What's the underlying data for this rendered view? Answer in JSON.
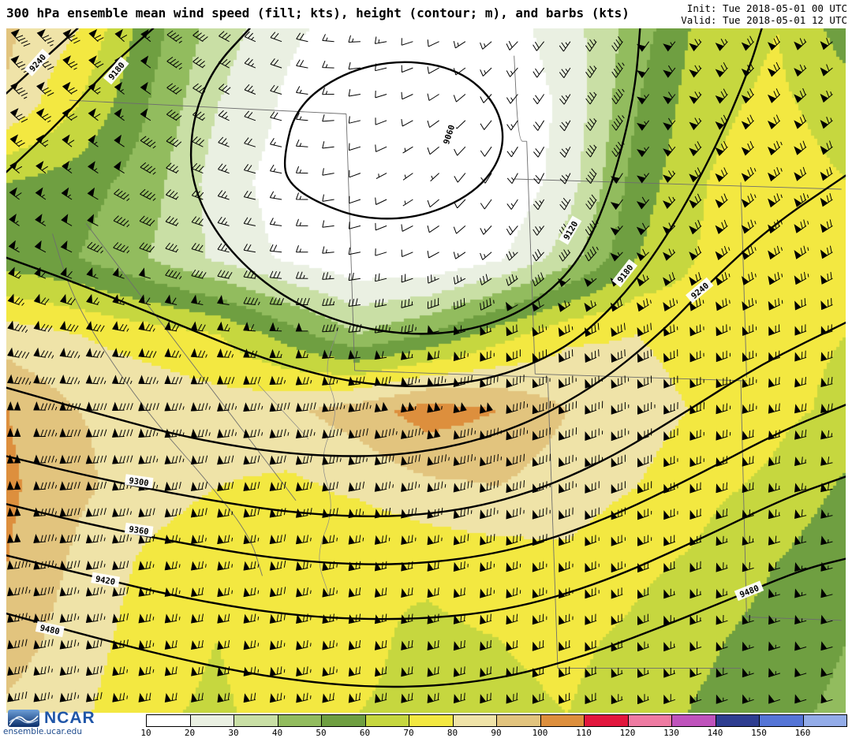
{
  "header": {
    "title": "300 hPa ensemble mean wind speed (fill; kts), height (contour; m), and barbs (kts)",
    "init": "Init: Tue 2018-05-01 00 UTC",
    "valid": "Valid: Tue 2018-05-01 12 UTC"
  },
  "footer": {
    "logo_text": "NCAR",
    "site": "ensemble.ucar.edu"
  },
  "chart_data": {
    "type": "heatmap",
    "title": "300 hPa ensemble mean wind speed (fill; kts), height (contour; m), and barbs (kts)",
    "level": "300 hPa",
    "fill_units": "kts",
    "contour_units": "m",
    "barb_units": "kts",
    "contour_interval_m": 60,
    "contour_levels": [
      9060,
      9120,
      9180,
      9240,
      9300,
      9360,
      9420,
      9480
    ],
    "colorbar": {
      "ticks": [
        10,
        20,
        30,
        40,
        50,
        60,
        70,
        80,
        90,
        100,
        110,
        120,
        130,
        140,
        150,
        160
      ],
      "colors": [
        "#ffffff",
        "#eaf0e2",
        "#c9dfa5",
        "#92bc5e",
        "#6f9f41",
        "#c6d73f",
        "#f3e841",
        "#efe3a8",
        "#e2c47e",
        "#dd8f3d",
        "#e2173d",
        "#ee7ba2",
        "#bf53bc",
        "#2e3d90",
        "#5575d6",
        "#93ace8"
      ]
    },
    "grid": {
      "nx": 13,
      "ny": 10,
      "speed": [
        [
          92,
          80,
          55,
          35,
          22,
          15,
          12,
          15,
          25,
          45,
          65,
          70,
          55
        ],
        [
          88,
          70,
          50,
          30,
          18,
          10,
          8,
          12,
          22,
          50,
          68,
          72,
          65
        ],
        [
          60,
          55,
          45,
          25,
          15,
          8,
          6,
          10,
          25,
          55,
          70,
          75,
          70
        ],
        [
          55,
          50,
          40,
          28,
          18,
          12,
          10,
          18,
          35,
          60,
          72,
          75,
          72
        ],
        [
          85,
          80,
          75,
          70,
          55,
          40,
          50,
          65,
          78,
          80,
          75,
          72,
          70
        ],
        [
          100,
          90,
          88,
          85,
          88,
          95,
          105,
          100,
          90,
          85,
          78,
          72,
          68
        ],
        [
          102,
          92,
          85,
          80,
          78,
          82,
          88,
          90,
          85,
          80,
          72,
          68,
          58
        ],
        [
          100,
          88,
          78,
          72,
          80,
          70,
          72,
          75,
          78,
          72,
          68,
          60,
          52
        ],
        [
          95,
          85,
          75,
          70,
          78,
          72,
          68,
          70,
          72,
          68,
          62,
          55,
          50
        ],
        [
          88,
          82,
          72,
          68,
          75,
          70,
          68,
          68,
          70,
          65,
          58,
          52,
          48
        ]
      ],
      "dir": [
        [
          320,
          315,
          310,
          300,
          290,
          270,
          250,
          230,
          215,
          215,
          220,
          225,
          230
        ],
        [
          315,
          310,
          305,
          300,
          285,
          260,
          240,
          220,
          210,
          215,
          220,
          225,
          230
        ],
        [
          310,
          305,
          300,
          290,
          280,
          250,
          230,
          210,
          205,
          215,
          225,
          230,
          235
        ],
        [
          300,
          295,
          290,
          285,
          275,
          260,
          245,
          230,
          220,
          225,
          230,
          235,
          240
        ],
        [
          285,
          282,
          280,
          278,
          272,
          265,
          258,
          250,
          245,
          245,
          248,
          250,
          252
        ],
        [
          272,
          270,
          268,
          266,
          264,
          262,
          260,
          255,
          252,
          250,
          252,
          255,
          258
        ],
        [
          268,
          266,
          264,
          262,
          262,
          260,
          258,
          255,
          252,
          250,
          252,
          255,
          258
        ],
        [
          265,
          264,
          262,
          260,
          260,
          258,
          256,
          254,
          252,
          250,
          252,
          254,
          256
        ],
        [
          262,
          261,
          260,
          259,
          258,
          257,
          256,
          254,
          252,
          250,
          251,
          253,
          255
        ],
        [
          260,
          260,
          259,
          258,
          257,
          256,
          255,
          253,
          251,
          250,
          251,
          252,
          254
        ]
      ]
    },
    "contours": [
      {
        "label": "9060",
        "closed": true,
        "points": [
          [
            0.33,
            0.19
          ],
          [
            0.345,
            0.115
          ],
          [
            0.4,
            0.065
          ],
          [
            0.47,
            0.045
          ],
          [
            0.54,
            0.06
          ],
          [
            0.585,
            0.11
          ],
          [
            0.595,
            0.175
          ],
          [
            0.565,
            0.235
          ],
          [
            0.5,
            0.275
          ],
          [
            0.43,
            0.28
          ],
          [
            0.37,
            0.255
          ],
          [
            0.335,
            0.225
          ]
        ],
        "labels": [
          {
            "x": 0.527,
            "y": 0.155,
            "angle": -72
          }
        ]
      },
      {
        "label": "9120",
        "points": [
          [
            0.29,
            0.0
          ],
          [
            0.245,
            0.06
          ],
          [
            0.22,
            0.14
          ],
          [
            0.22,
            0.23
          ],
          [
            0.26,
            0.32
          ],
          [
            0.33,
            0.395
          ],
          [
            0.42,
            0.44
          ],
          [
            0.52,
            0.45
          ],
          [
            0.61,
            0.42
          ],
          [
            0.675,
            0.355
          ],
          [
            0.71,
            0.27
          ],
          [
            0.735,
            0.17
          ],
          [
            0.75,
            0.08
          ],
          [
            0.755,
            0.0
          ]
        ],
        "labels": [
          {
            "x": 0.672,
            "y": 0.295,
            "angle": -60
          }
        ]
      },
      {
        "label": "9180",
        "points": [
          [
            0.175,
            0.0
          ],
          [
            0.12,
            0.06
          ],
          [
            0.065,
            0.135
          ],
          [
            0.0,
            0.21
          ]
        ],
        "labels": [
          {
            "x": 0.131,
            "y": 0.062,
            "angle": -50
          }
        ]
      },
      {
        "label": "9180",
        "points": [
          [
            0.0,
            0.335
          ],
          [
            0.09,
            0.375
          ],
          [
            0.2,
            0.43
          ],
          [
            0.32,
            0.49
          ],
          [
            0.44,
            0.525
          ],
          [
            0.56,
            0.52
          ],
          [
            0.66,
            0.475
          ],
          [
            0.73,
            0.4
          ],
          [
            0.79,
            0.3
          ],
          [
            0.845,
            0.175
          ],
          [
            0.885,
            0.06
          ],
          [
            0.9,
            0.0
          ]
        ],
        "labels": [
          {
            "x": 0.737,
            "y": 0.358,
            "angle": -52
          }
        ]
      },
      {
        "label": "9240",
        "points": [
          [
            0.085,
            0.0
          ],
          [
            0.04,
            0.05
          ],
          [
            0.0,
            0.095
          ]
        ],
        "labels": [
          {
            "x": 0.037,
            "y": 0.05,
            "angle": -48
          }
        ]
      },
      {
        "label": "9240",
        "points": [
          [
            0.0,
            0.525
          ],
          [
            0.1,
            0.56
          ],
          [
            0.22,
            0.6
          ],
          [
            0.35,
            0.625
          ],
          [
            0.48,
            0.625
          ],
          [
            0.6,
            0.59
          ],
          [
            0.7,
            0.525
          ],
          [
            0.78,
            0.445
          ],
          [
            0.835,
            0.375
          ],
          [
            0.91,
            0.29
          ],
          [
            1.0,
            0.215
          ]
        ],
        "labels": [
          {
            "x": 0.826,
            "y": 0.383,
            "angle": -40
          }
        ]
      },
      {
        "label": "9300",
        "points": [
          [
            0.0,
            0.625
          ],
          [
            0.1,
            0.655
          ],
          [
            0.22,
            0.685
          ],
          [
            0.35,
            0.71
          ],
          [
            0.48,
            0.715
          ],
          [
            0.6,
            0.69
          ],
          [
            0.71,
            0.635
          ],
          [
            0.81,
            0.56
          ],
          [
            0.9,
            0.49
          ],
          [
            1.0,
            0.43
          ]
        ],
        "labels": [
          {
            "x": 0.158,
            "y": 0.662,
            "angle": 8
          }
        ]
      },
      {
        "label": "9360",
        "points": [
          [
            0.0,
            0.695
          ],
          [
            0.1,
            0.725
          ],
          [
            0.22,
            0.755
          ],
          [
            0.35,
            0.78
          ],
          [
            0.48,
            0.785
          ],
          [
            0.6,
            0.765
          ],
          [
            0.71,
            0.72
          ],
          [
            0.82,
            0.655
          ],
          [
            0.92,
            0.59
          ],
          [
            1.0,
            0.55
          ]
        ],
        "labels": [
          {
            "x": 0.158,
            "y": 0.733,
            "angle": 8
          }
        ]
      },
      {
        "label": "9420",
        "points": [
          [
            0.0,
            0.77
          ],
          [
            0.1,
            0.8
          ],
          [
            0.22,
            0.835
          ],
          [
            0.35,
            0.86
          ],
          [
            0.48,
            0.865
          ],
          [
            0.6,
            0.85
          ],
          [
            0.71,
            0.81
          ],
          [
            0.82,
            0.75
          ],
          [
            0.93,
            0.685
          ],
          [
            1.0,
            0.655
          ]
        ],
        "labels": [
          {
            "x": 0.118,
            "y": 0.806,
            "angle": 10
          }
        ]
      },
      {
        "label": "9480",
        "points": [
          [
            0.0,
            0.855
          ],
          [
            0.09,
            0.885
          ],
          [
            0.2,
            0.92
          ],
          [
            0.32,
            0.95
          ],
          [
            0.45,
            0.965
          ],
          [
            0.57,
            0.955
          ],
          [
            0.67,
            0.925
          ],
          [
            0.77,
            0.88
          ],
          [
            0.87,
            0.83
          ],
          [
            0.95,
            0.79
          ],
          [
            1.0,
            0.775
          ]
        ],
        "labels": [
          {
            "x": 0.052,
            "y": 0.878,
            "angle": 12
          },
          {
            "x": 0.885,
            "y": 0.822,
            "angle": -22
          }
        ]
      }
    ],
    "borders": [
      [
        [
          0.075,
          0.105
        ],
        [
          0.405,
          0.125
        ]
      ],
      [
        [
          0.405,
          0.125
        ],
        [
          0.415,
          0.5
        ]
      ],
      [
        [
          0.095,
          0.285
        ],
        [
          0.345,
          0.69
        ]
      ],
      [
        [
          0.055,
          0.3
        ],
        [
          0.075,
          0.38
        ],
        [
          0.11,
          0.46
        ],
        [
          0.17,
          0.565
        ],
        [
          0.235,
          0.655
        ],
        [
          0.29,
          0.74
        ],
        [
          0.305,
          0.8
        ]
      ],
      [
        [
          0.415,
          0.5
        ],
        [
          0.645,
          0.51
        ]
      ],
      [
        [
          0.62,
          0.165
        ],
        [
          0.63,
          0.505
        ]
      ],
      [
        [
          0.605,
          0.04
        ],
        [
          0.61,
          0.165
        ],
        [
          0.62,
          0.165
        ]
      ],
      [
        [
          0.605,
          0.22
        ],
        [
          0.995,
          0.235
        ]
      ],
      [
        [
          0.875,
          0.225
        ],
        [
          0.882,
          0.51
        ]
      ],
      [
        [
          0.63,
          0.505
        ],
        [
          0.882,
          0.515
        ]
      ],
      [
        [
          0.645,
          0.51
        ],
        [
          0.657,
          0.935
        ]
      ],
      [
        [
          0.657,
          0.935
        ],
        [
          0.875,
          0.935
        ]
      ],
      [
        [
          0.875,
          0.515
        ],
        [
          0.882,
          0.86
        ]
      ],
      [
        [
          0.882,
          0.86
        ],
        [
          0.995,
          0.865
        ]
      ]
    ],
    "rivers": [
      [
        [
          0.395,
          0.44
        ],
        [
          0.378,
          0.5
        ],
        [
          0.397,
          0.56
        ],
        [
          0.372,
          0.63
        ],
        [
          0.392,
          0.7
        ],
        [
          0.368,
          0.77
        ],
        [
          0.385,
          0.83
        ]
      ],
      [
        [
          0.3,
          0.52
        ],
        [
          0.33,
          0.56
        ],
        [
          0.36,
          0.6
        ]
      ]
    ]
  }
}
